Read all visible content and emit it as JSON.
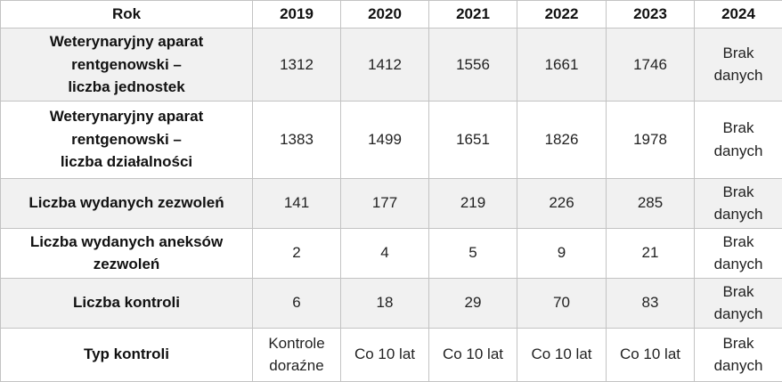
{
  "chart_data": {
    "type": "table",
    "title": "",
    "columns": [
      "Rok",
      "2019",
      "2020",
      "2021",
      "2022",
      "2023",
      "2024"
    ],
    "rows": [
      [
        "Weterynaryjny aparat rentgenowski – liczba jednostek",
        1312,
        1412,
        1556,
        1661,
        1746,
        "Brak danych"
      ],
      [
        "Weterynaryjny aparat rentgenowski – liczba działalności",
        1383,
        1499,
        1651,
        1826,
        1978,
        "Brak danych"
      ],
      [
        "Liczba wydanych zezwoleń",
        141,
        177,
        219,
        226,
        285,
        "Brak danych"
      ],
      [
        "Liczba wydanych aneksów zezwoleń",
        2,
        4,
        5,
        9,
        21,
        "Brak danych"
      ],
      [
        "Liczba kontroli",
        6,
        18,
        29,
        70,
        83,
        "Brak danych"
      ],
      [
        "Typ kontroli",
        "Kontrole doraźne",
        "Co 10 lat",
        "Co 10 lat",
        "Co 10 lat",
        "Co 10 lat",
        "Brak danych"
      ]
    ],
    "layout_hints": {
      "grid": "all-borders",
      "header_row_bold": true,
      "first_column_bold": true,
      "alternating_row_shading": true
    }
  },
  "colors": {
    "shaded_row_bg": "#f1f1f1",
    "plain_row_bg": "#ffffff",
    "border": "#c3c3c3",
    "text": "#222222"
  },
  "table": {
    "header": {
      "label": "Rok",
      "years": [
        "2019",
        "2020",
        "2021",
        "2022",
        "2023",
        "2024"
      ]
    },
    "rows": [
      {
        "label": "Weterynaryjny aparat\nrentgenowski –\nliczba jednostek",
        "values": [
          "1312",
          "1412",
          "1556",
          "1661",
          "1746",
          "Brak\ndanych"
        ]
      },
      {
        "label": "Weterynaryjny aparat\nrentgenowski –\nliczba działalności",
        "values": [
          "1383",
          "1499",
          "1651",
          "1826",
          "1978",
          "Brak\ndanych"
        ]
      },
      {
        "label": "Liczba wydanych zezwoleń",
        "values": [
          "141",
          "177",
          "219",
          "226",
          "285",
          "Brak\ndanych"
        ]
      },
      {
        "label": "Liczba wydanych aneksów\nzezwoleń",
        "values": [
          "2",
          "4",
          "5",
          "9",
          "21",
          "Brak\ndanych"
        ]
      },
      {
        "label": "Liczba kontroli",
        "values": [
          "6",
          "18",
          "29",
          "70",
          "83",
          "Brak\ndanych"
        ]
      },
      {
        "label": "Typ kontroli",
        "values": [
          "Kontrole\ndoraźne",
          "Co 10 lat",
          "Co 10 lat",
          "Co 10 lat",
          "Co 10 lat",
          "Brak\ndanych"
        ]
      }
    ]
  }
}
